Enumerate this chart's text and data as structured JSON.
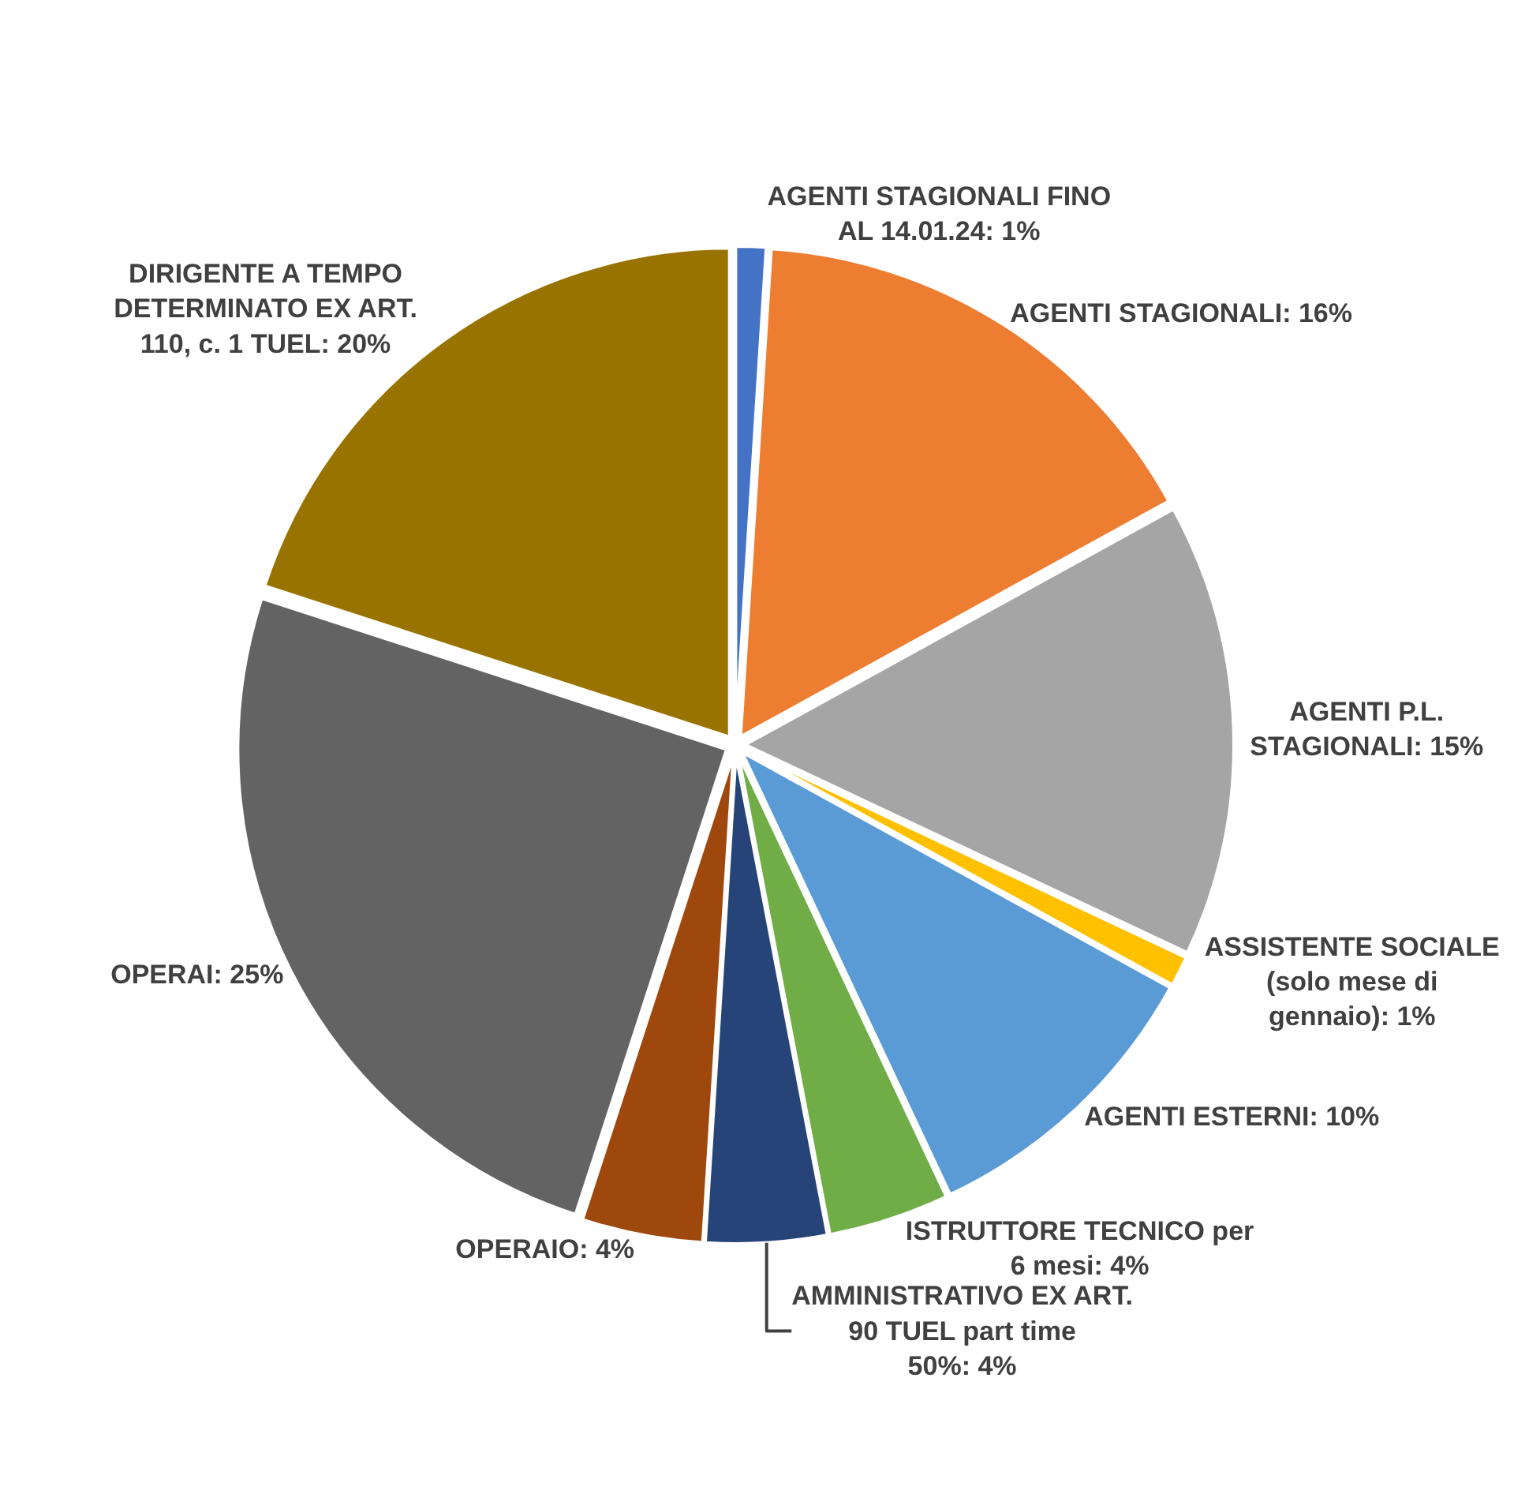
{
  "chart_data": {
    "type": "pie",
    "categories": [
      "AGENTI STAGIONALI FINO AL 14.01.24",
      "AGENTI STAGIONALI",
      "AGENTI P.L. STAGIONALI",
      "ASSISTENTE SOCIALE (solo mese di gennaio)",
      "AGENTI ESTERNI",
      "ISTRUTTORE TECNICO per 6 mesi",
      "AMMINISTRATIVO EX ART. 90 TUEL part time 50%",
      "OPERAIO",
      "OPERAI",
      "DIRIGENTE A TEMPO DETERMINATO EX ART. 110, c. 1 TUEL"
    ],
    "values": [
      1,
      16,
      15,
      1,
      10,
      4,
      4,
      4,
      25,
      20
    ],
    "value_labels": [
      "1%",
      "16%",
      "15%",
      "1%",
      "10%",
      "4%",
      "4%",
      "4%",
      "25%",
      "20%"
    ],
    "colors": [
      "#4472c4",
      "#ed7d31",
      "#a5a5a5",
      "#ffc000",
      "#5b9bd5",
      "#70ad47",
      "#264478",
      "#9e480e",
      "#636363",
      "#997300"
    ],
    "legend": false
  }
}
